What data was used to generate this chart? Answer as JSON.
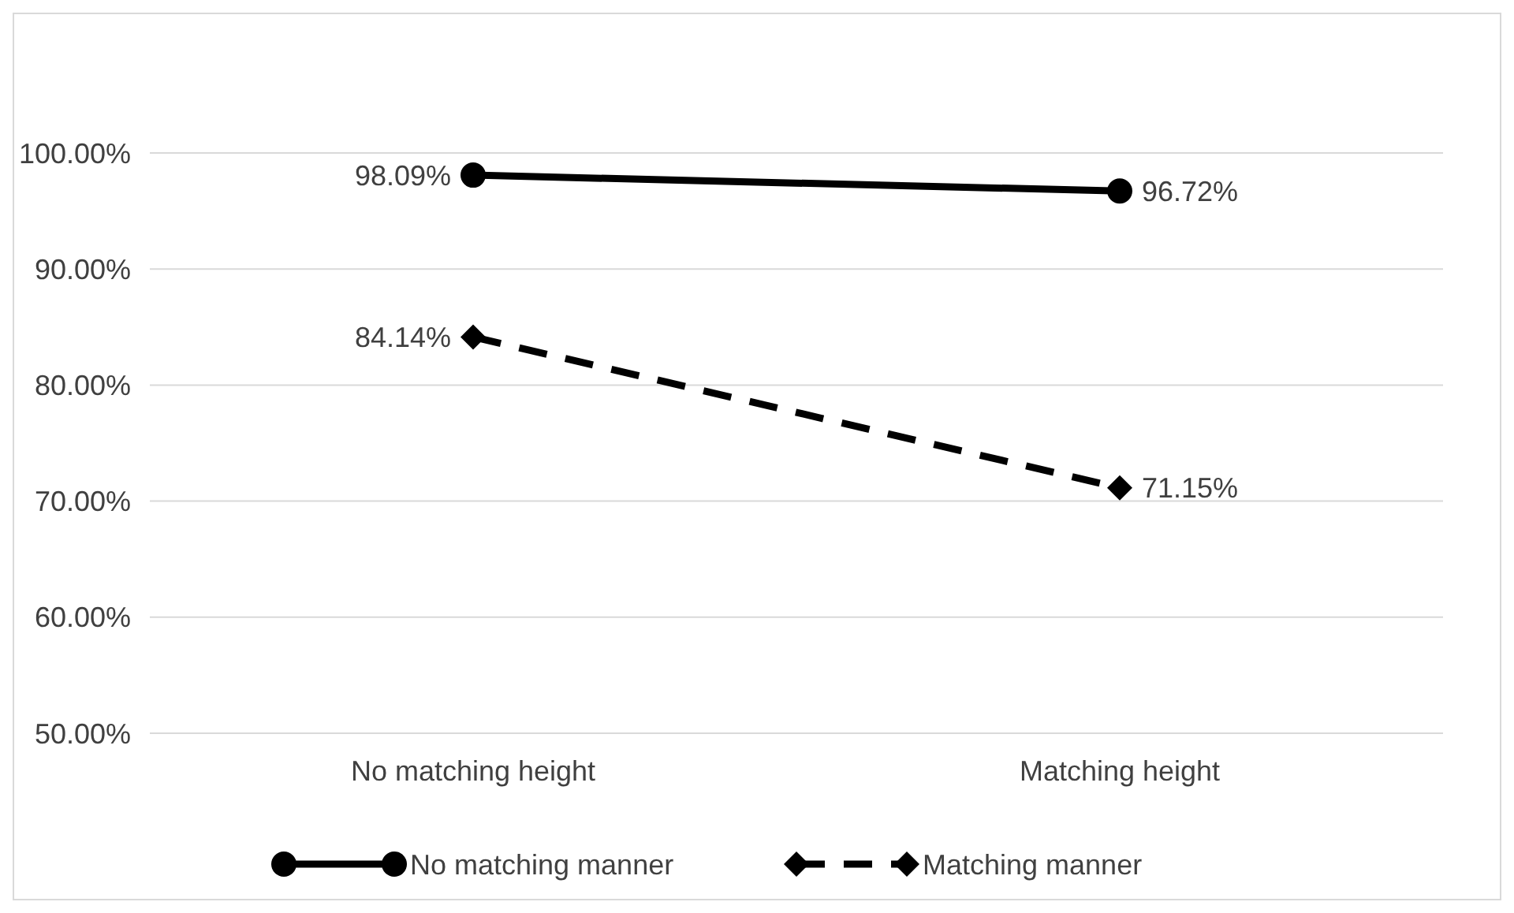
{
  "chart_data": {
    "type": "line",
    "categories": [
      "No matching height",
      "Matching height"
    ],
    "ylim": [
      50,
      100
    ],
    "yticks": [
      {
        "value": 50,
        "label": "50.00%"
      },
      {
        "value": 60,
        "label": "60.00%"
      },
      {
        "value": 70,
        "label": "70.00%"
      },
      {
        "value": 80,
        "label": "80.00%"
      },
      {
        "value": 90,
        "label": "90.00%"
      },
      {
        "value": 100,
        "label": "100.00%"
      }
    ],
    "grid": "y",
    "legend": "bottom",
    "series": [
      {
        "name": "No matching manner",
        "color": "#000000",
        "values": [
          98.09,
          96.72
        ],
        "value_labels": [
          "98.09%",
          "96.72%"
        ],
        "marker": "circle",
        "line_style": "solid"
      },
      {
        "name": "Matching manner",
        "color": "#000000",
        "values": [
          84.14,
          71.15
        ],
        "value_labels": [
          "84.14%",
          "71.15%"
        ],
        "marker": "diamond",
        "line_style": "dashed"
      }
    ]
  }
}
